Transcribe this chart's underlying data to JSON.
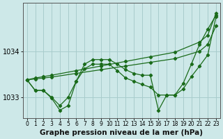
{
  "title": "Graphe pression niveau de la mer (hPa)",
  "bg_color": "#cde8e8",
  "grid_color": "#a8cccc",
  "line_color": "#1a6b1a",
  "xlim": [
    -0.5,
    23.5
  ],
  "ylim": [
    1032.55,
    1035.05
  ],
  "yticks": [
    1033,
    1034
  ],
  "xticks": [
    0,
    1,
    2,
    3,
    4,
    5,
    6,
    7,
    8,
    9,
    10,
    11,
    12,
    13,
    14,
    15,
    16,
    17,
    18,
    19,
    20,
    21,
    22,
    23
  ],
  "series": [
    {
      "x": [
        0,
        1,
        2,
        3,
        6,
        9,
        12,
        15,
        18,
        21,
        22,
        23
      ],
      "y": [
        1033.38,
        1033.42,
        1033.45,
        1033.48,
        1033.58,
        1033.68,
        1033.78,
        1033.88,
        1033.98,
        1034.2,
        1034.35,
        1034.82
      ]
    },
    {
      "x": [
        0,
        1,
        2,
        3,
        6,
        9,
        12,
        15,
        18,
        21,
        22,
        23
      ],
      "y": [
        1033.38,
        1033.4,
        1033.42,
        1033.44,
        1033.52,
        1033.6,
        1033.68,
        1033.76,
        1033.84,
        1034.0,
        1034.15,
        1034.55
      ]
    },
    {
      "x": [
        0,
        1,
        2,
        3,
        4,
        5,
        6,
        7,
        8,
        9,
        10,
        11,
        12,
        13,
        14,
        15,
        16,
        17,
        18,
        19,
        20,
        21,
        22,
        23
      ],
      "y": [
        1033.38,
        1033.15,
        1033.15,
        1032.98,
        1032.72,
        1032.82,
        1033.35,
        1033.72,
        1033.82,
        1033.82,
        1033.82,
        1033.72,
        1033.6,
        1033.52,
        1033.48,
        1033.48,
        1032.72,
        1033.05,
        1033.05,
        1033.3,
        1033.72,
        1034.15,
        1034.48,
        1034.78
      ]
    },
    {
      "x": [
        0,
        1,
        2,
        3,
        4,
        5,
        6,
        7,
        8,
        9,
        10,
        11,
        12,
        13,
        14,
        15,
        16,
        17,
        18,
        19,
        20,
        21,
        22,
        23
      ],
      "y": [
        1033.38,
        1033.15,
        1033.15,
        1033.0,
        1032.82,
        1033.0,
        1033.35,
        1033.62,
        1033.72,
        1033.72,
        1033.72,
        1033.58,
        1033.42,
        1033.35,
        1033.28,
        1033.22,
        1033.05,
        1033.05,
        1033.05,
        1033.18,
        1033.45,
        1033.68,
        1033.92,
        1034.75
      ]
    }
  ],
  "xlabel_fontsize": 5.5,
  "ylabel_fontsize": 7,
  "title_fontsize": 7.5
}
